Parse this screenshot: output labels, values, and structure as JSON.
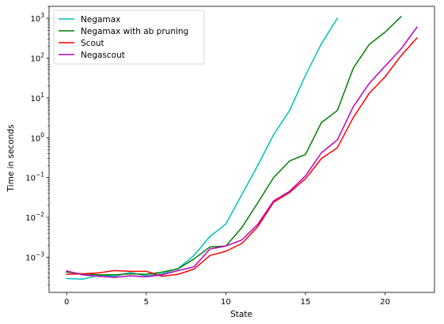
{
  "chart_data": {
    "type": "line",
    "xlabel": "State",
    "ylabel": "Time in seconds",
    "yscale": "log",
    "xlim": [
      -1.1,
      23.1
    ],
    "ylim": [
      0.00013,
      2000
    ],
    "x_ticks": [
      0,
      5,
      10,
      15,
      20
    ],
    "y_ticks": [
      {
        "value": 0.001,
        "base": "10",
        "exp": "−3"
      },
      {
        "value": 0.01,
        "base": "10",
        "exp": "−2"
      },
      {
        "value": 0.1,
        "base": "10",
        "exp": "−1"
      },
      {
        "value": 1,
        "base": "10",
        "exp": "0"
      },
      {
        "value": 10,
        "base": "10",
        "exp": "1"
      },
      {
        "value": 100,
        "base": "10",
        "exp": "2"
      },
      {
        "value": 1000,
        "base": "10",
        "exp": "3"
      }
    ],
    "legend_position": "top-left",
    "series": [
      {
        "name": "Negamax",
        "color": "#00bfbf",
        "x": [
          0,
          1,
          2,
          3,
          4,
          5,
          6,
          7,
          8,
          9,
          10,
          11,
          12,
          13,
          14,
          15,
          16,
          17
        ],
        "y": [
          0.00029,
          0.00028,
          0.00035,
          0.00033,
          0.00041,
          0.00034,
          0.00038,
          0.00052,
          0.0011,
          0.0033,
          0.0068,
          0.037,
          0.2,
          1.2,
          4.8,
          37,
          230,
          1000
        ]
      },
      {
        "name": "Negamax with ab pruning",
        "color": "#008000",
        "x": [
          0,
          1,
          2,
          3,
          4,
          5,
          6,
          7,
          8,
          9,
          10,
          11,
          12,
          13,
          14,
          15,
          16,
          17,
          18,
          19,
          20,
          21
        ],
        "y": [
          0.00042,
          0.00038,
          0.00036,
          0.00036,
          0.00038,
          0.00037,
          0.00042,
          0.00051,
          0.0009,
          0.0018,
          0.0019,
          0.0055,
          0.023,
          0.1,
          0.26,
          0.38,
          2.4,
          4.8,
          56,
          220,
          450,
          1100
        ]
      },
      {
        "name": "Scout",
        "color": "#ff0000",
        "x": [
          0,
          1,
          2,
          3,
          4,
          5,
          6,
          7,
          8,
          9,
          10,
          11,
          12,
          13,
          14,
          15,
          16,
          17,
          18,
          19,
          20,
          21,
          22
        ],
        "y": [
          0.00037,
          0.00038,
          0.0004,
          0.00046,
          0.00044,
          0.00044,
          0.00033,
          0.00037,
          0.0005,
          0.0011,
          0.0014,
          0.0022,
          0.0058,
          0.024,
          0.042,
          0.093,
          0.3,
          0.56,
          3.2,
          13,
          34,
          115,
          320
        ]
      },
      {
        "name": "Negascout",
        "color": "#bf00bf",
        "x": [
          0,
          1,
          2,
          3,
          4,
          5,
          6,
          7,
          8,
          9,
          10,
          11,
          12,
          13,
          14,
          15,
          16,
          17,
          18,
          19,
          20,
          21,
          22
        ],
        "y": [
          0.00045,
          0.00036,
          0.00033,
          0.00031,
          0.00034,
          0.00032,
          0.00036,
          0.00046,
          0.00057,
          0.0016,
          0.0019,
          0.0027,
          0.0066,
          0.026,
          0.045,
          0.11,
          0.42,
          0.88,
          6,
          23,
          63,
          170,
          600
        ]
      }
    ]
  }
}
